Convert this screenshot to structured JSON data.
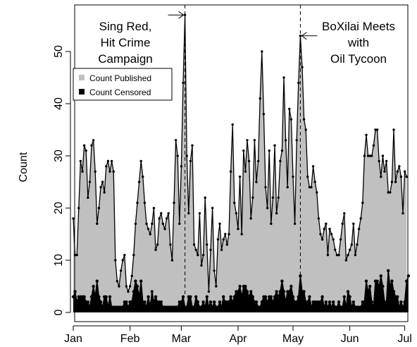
{
  "chart_data": {
    "type": "area",
    "title": "",
    "xlabel": "",
    "ylabel": "Count",
    "ylim": [
      0,
      58
    ],
    "x_tick_labels": [
      "Jan",
      "Feb",
      "Mar",
      "Apr",
      "May",
      "Jun",
      "Jul"
    ],
    "x_tick_days": [
      0,
      31,
      59,
      90,
      120,
      151,
      181
    ],
    "y_ticks": [
      0,
      10,
      20,
      30,
      40,
      50
    ],
    "grid": false,
    "legend_position": "upper-left",
    "series": [
      {
        "name": "Count Published",
        "color": "#c0c0c0",
        "values": [
          18,
          11,
          11,
          20,
          29,
          27,
          32,
          31,
          22,
          25,
          32,
          33,
          27,
          17,
          20,
          24,
          25,
          23,
          28,
          29,
          27,
          29,
          27,
          10,
          6,
          5,
          8,
          10,
          11,
          5,
          4,
          5,
          7,
          11,
          17,
          21,
          25,
          29,
          26,
          21,
          17,
          16,
          15,
          17,
          20,
          12,
          13,
          18,
          19,
          17,
          16,
          18,
          19,
          13,
          10,
          21,
          33,
          30,
          17,
          28,
          44,
          57,
          30,
          19,
          29,
          32,
          13,
          12,
          11,
          19,
          9,
          11,
          22,
          13,
          4,
          12,
          20,
          8,
          5,
          14,
          17,
          12,
          14,
          15,
          13,
          15,
          27,
          36,
          21,
          19,
          16,
          26,
          15,
          31,
          27,
          33,
          29,
          18,
          22,
          33,
          25,
          29,
          41,
          50,
          38,
          24,
          20,
          31,
          17,
          22,
          32,
          19,
          22,
          29,
          31,
          45,
          33,
          24,
          39,
          37,
          26,
          17,
          33,
          44,
          53,
          47,
          37,
          35,
          26,
          24,
          24,
          28,
          25,
          23,
          18,
          15,
          14,
          16,
          17,
          11,
          16,
          15,
          14,
          12,
          11,
          11,
          14,
          17,
          19,
          10,
          11,
          12,
          13,
          17,
          11,
          13,
          16,
          18,
          21,
          30,
          34,
          30,
          30,
          30,
          32,
          35,
          35,
          29,
          26,
          30,
          27,
          29,
          23,
          23,
          25,
          35,
          25,
          27,
          28,
          26,
          19,
          27,
          26
        ],
        "markers": true
      },
      {
        "name": "Count Censored",
        "color": "#000000",
        "values": [
          3,
          4,
          2,
          3,
          3,
          3,
          3,
          2,
          2,
          1,
          3,
          5,
          3,
          6,
          3,
          2,
          1,
          3,
          3,
          1,
          3,
          1,
          1,
          1,
          1,
          1,
          1,
          1,
          2,
          2,
          1,
          2,
          2,
          4,
          6,
          5,
          3,
          6,
          2,
          2,
          1,
          3,
          1,
          4,
          2,
          3,
          2,
          2,
          2,
          1,
          1,
          1,
          1,
          1,
          1,
          1,
          1,
          1,
          2,
          2,
          3,
          1,
          1,
          3,
          3,
          1,
          1,
          3,
          2,
          1,
          1,
          2,
          1,
          3,
          1,
          2,
          1,
          2,
          1,
          1,
          2,
          1,
          3,
          2,
          2,
          2,
          3,
          2,
          3,
          4,
          4,
          5,
          3,
          5,
          5,
          4,
          3,
          4,
          3,
          2,
          2,
          1,
          1,
          2,
          3,
          3,
          2,
          3,
          3,
          2,
          3,
          4,
          3,
          4,
          6,
          4,
          2,
          4,
          4,
          5,
          3,
          2,
          2,
          3,
          7,
          4,
          4,
          2,
          2,
          3,
          1,
          2,
          2,
          2,
          2,
          2,
          3,
          1,
          2,
          1,
          2,
          1,
          2,
          1,
          1,
          2,
          1,
          1,
          3,
          1,
          4,
          3,
          1,
          2,
          1,
          1,
          1,
          1,
          2,
          2,
          6,
          4,
          5,
          2,
          1,
          6,
          6,
          5,
          7,
          5,
          2,
          2,
          8,
          5,
          6,
          4,
          3,
          3,
          1,
          2,
          1,
          2,
          6,
          7
        ],
        "markers": true
      }
    ],
    "annotations": [
      {
        "text": [
          "Sing Red,",
          "Hit Crime",
          "Campaign"
        ],
        "x_day": 61,
        "peak": 57
      },
      {
        "text": [
          "BoXilai Meets",
          "with",
          "Oil Tycoon"
        ],
        "x_day": 124,
        "peak": 53
      }
    ]
  }
}
